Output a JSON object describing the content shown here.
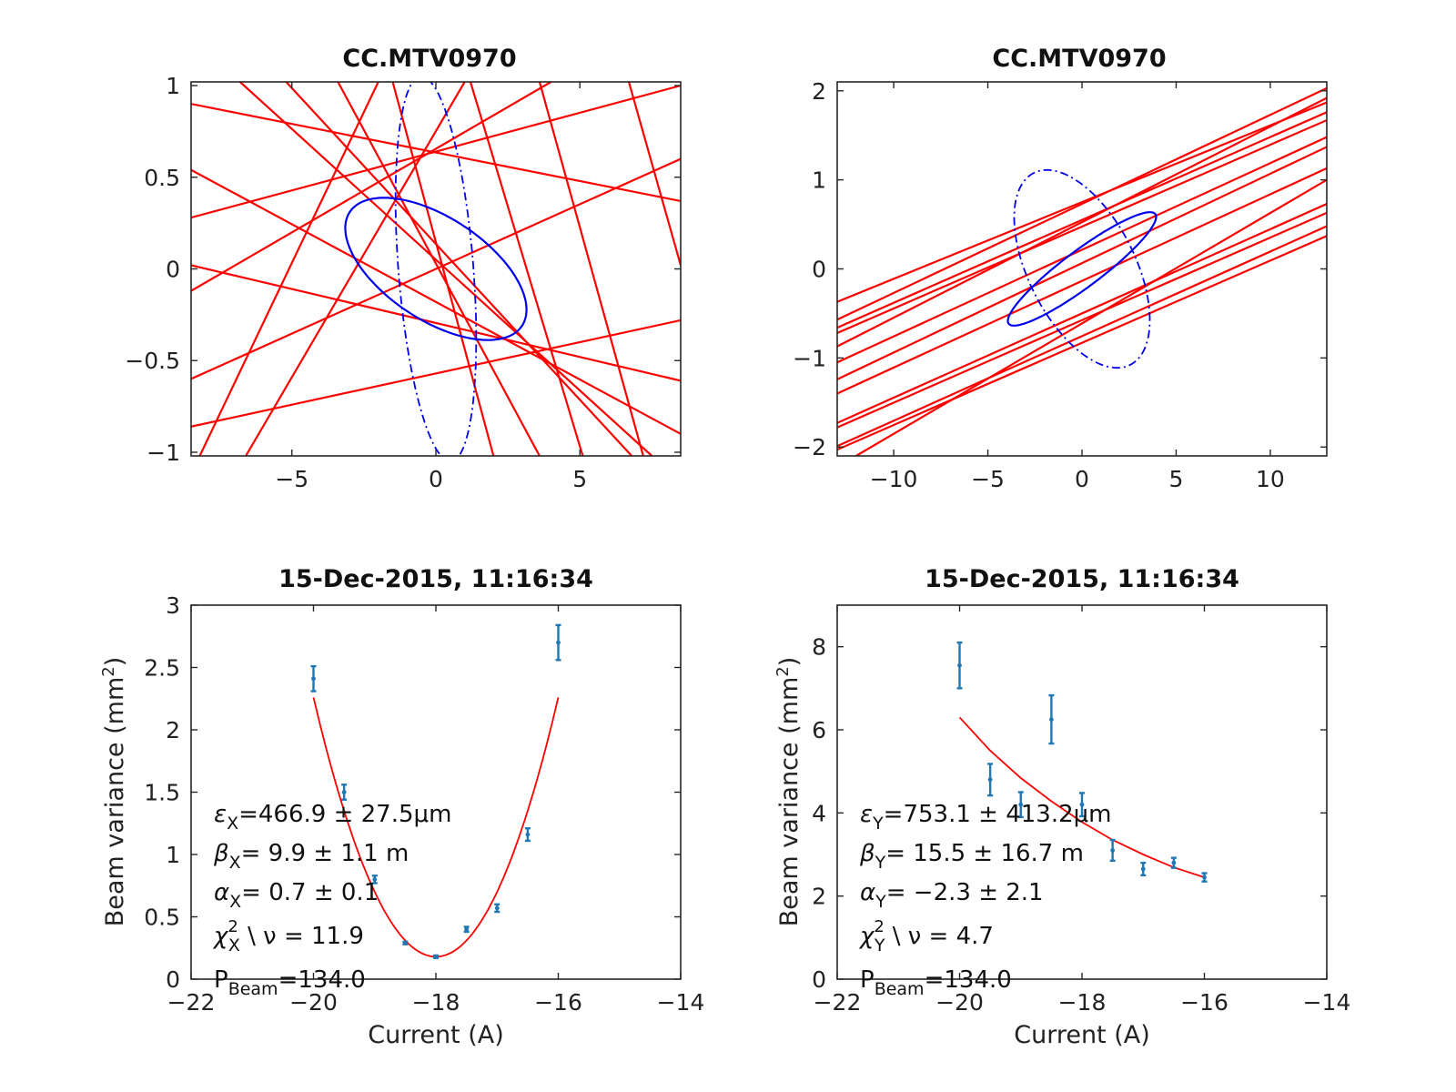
{
  "figure_colors": {
    "phase_line": "#ff0000",
    "ellipse": "#0000ee",
    "data": "#1f77b4",
    "fit": "#ff0000"
  },
  "chart_data": [
    {
      "type": "line",
      "id": "tl",
      "title": "CC.MTV0970",
      "xlabel": "",
      "ylabel": "",
      "xlim": [
        -8.5,
        8.5
      ],
      "ylim": [
        -1.02,
        1.02
      ],
      "xticks": [
        -5,
        0,
        5
      ],
      "xtick_labels": [
        "−5",
        "0",
        "5"
      ],
      "yticks": [
        -1,
        -0.5,
        0,
        0.5,
        1
      ],
      "ytick_labels": [
        "−1",
        "−0.5",
        "0",
        "0.5",
        "1"
      ],
      "ellipse_solid": {
        "emittance": 1.0,
        "beta": 9.9,
        "alpha": 0.7
      },
      "ellipse_dashed": {
        "cx": 0.0,
        "cy": 0.0,
        "rx": 1.4,
        "ry": 0.98,
        "tilt_slope": -0.27
      },
      "lines": [
        {
          "x": [
            -8.5,
            8.5
          ],
          "y": [
            0.9,
            0.37
          ]
        },
        {
          "x": [
            -8.5,
            8.5
          ],
          "y": [
            0.28,
            1.0
          ]
        },
        {
          "x": [
            -8.5,
            8.5
          ],
          "y": [
            0.02,
            -0.61
          ]
        },
        {
          "x": [
            -8.5,
            8.5
          ],
          "y": [
            -0.86,
            -0.28
          ]
        },
        {
          "x": [
            -8.5,
            8.5
          ],
          "y": [
            0.54,
            -0.9
          ]
        },
        {
          "x": [
            -8.5,
            4.0
          ],
          "y": [
            -0.12,
            1.02
          ]
        },
        {
          "x": [
            -8.5,
            8.5
          ],
          "y": [
            -0.6,
            0.6
          ]
        },
        {
          "x": [
            -6.8,
            7.5
          ],
          "y": [
            1.02,
            -1.02
          ]
        },
        {
          "x": [
            -5.2,
            6.8
          ],
          "y": [
            1.02,
            -1.02
          ]
        },
        {
          "x": [
            -3.4,
            3.6
          ],
          "y": [
            1.02,
            -1.02
          ]
        },
        {
          "x": [
            -1.5,
            2.0
          ],
          "y": [
            1.02,
            -1.02
          ]
        },
        {
          "x": [
            1.2,
            5.1
          ],
          "y": [
            1.02,
            -1.02
          ]
        },
        {
          "x": [
            3.6,
            7.2
          ],
          "y": [
            1.02,
            -1.02
          ]
        },
        {
          "x": [
            6.7,
            8.5
          ],
          "y": [
            1.02,
            0.02
          ]
        },
        {
          "x": [
            -8.2,
            -2.0
          ],
          "y": [
            -1.02,
            1.02
          ]
        },
        {
          "x": [
            -6.6,
            1.0
          ],
          "y": [
            -1.02,
            1.02
          ]
        }
      ]
    },
    {
      "type": "line",
      "id": "tr",
      "title": "CC.MTV0970",
      "xlabel": "",
      "ylabel": "",
      "xlim": [
        -13,
        13
      ],
      "ylim": [
        -2.1,
        2.1
      ],
      "xticks": [
        -10,
        -5,
        0,
        5,
        10
      ],
      "xtick_labels": [
        "−10",
        "−5",
        "0",
        "5",
        "10"
      ],
      "yticks": [
        -2,
        -1,
        0,
        1,
        2
      ],
      "ytick_labels": [
        "−2",
        "−1",
        "0",
        "1",
        "2"
      ],
      "ellipse_solid": {
        "emittance": 1.0,
        "beta": 15.5,
        "alpha": -2.3
      },
      "ellipse_dashed": {
        "cx": 0.0,
        "cy": 0.0,
        "rx": 3.6,
        "ry": 0.95,
        "tilt_slope": -0.16
      },
      "lines": [
        {
          "x": [
            -13,
            13
          ],
          "y": [
            -0.37,
            1.87
          ]
        },
        {
          "x": [
            -13,
            13
          ],
          "y": [
            -0.57,
            2.03
          ]
        },
        {
          "x": [
            -13,
            13
          ],
          "y": [
            -0.66,
            1.76
          ]
        },
        {
          "x": [
            -13,
            13
          ],
          "y": [
            -0.72,
            1.67
          ]
        },
        {
          "x": [
            -13,
            13
          ],
          "y": [
            -0.87,
            1.92
          ]
        },
        {
          "x": [
            -13,
            13
          ],
          "y": [
            -1.05,
            1.48
          ]
        },
        {
          "x": [
            -13,
            13
          ],
          "y": [
            -1.24,
            1.37
          ]
        },
        {
          "x": [
            -13,
            13
          ],
          "y": [
            -1.4,
            1.13
          ]
        },
        {
          "x": [
            -13,
            13
          ],
          "y": [
            -1.73,
            0.73
          ]
        },
        {
          "x": [
            -13,
            13
          ],
          "y": [
            -1.78,
            0.63
          ]
        },
        {
          "x": [
            -13,
            13
          ],
          "y": [
            -1.99,
            0.48
          ]
        },
        {
          "x": [
            -13,
            13
          ],
          "y": [
            -2.03,
            0.37
          ]
        },
        {
          "x": [
            -12,
            13
          ],
          "y": [
            -2.1,
            1.0
          ]
        }
      ]
    },
    {
      "type": "scatter",
      "id": "bl",
      "title": "15-Dec-2015, 11:16:34",
      "xlabel": "Current (A)",
      "ylabel": "Beam variance (mm",
      "ylabel_sup": "2",
      "ylabel_close": ")",
      "xlim": [
        -22,
        -14
      ],
      "ylim": [
        0,
        3
      ],
      "xticks": [
        -22,
        -20,
        -18,
        -16,
        -14
      ],
      "xtick_labels": [
        "−22",
        "−20",
        "−18",
        "−16",
        "−14"
      ],
      "yticks": [
        0,
        0.5,
        1,
        1.5,
        2,
        2.5,
        3
      ],
      "ytick_labels": [
        "0",
        "0.5",
        "1",
        "1.5",
        "2",
        "2.5",
        "3"
      ],
      "points": {
        "x": [
          -20,
          -19.5,
          -19,
          -18.5,
          -18,
          -17.5,
          -17,
          -16.5,
          -16
        ],
        "y": [
          2.41,
          1.5,
          0.8,
          0.29,
          0.18,
          0.4,
          0.57,
          1.16,
          2.7
        ],
        "err": [
          0.1,
          0.06,
          0.03,
          0.01,
          0.01,
          0.02,
          0.03,
          0.05,
          0.14
        ]
      },
      "fit": {
        "type": "quadratic",
        "x_range": [
          -20,
          -16
        ],
        "vertex_x": -18.0,
        "vertex_y": 0.18,
        "coeff": 0.52
      },
      "annotation": {
        "emit_sym": "ε",
        "emit_sub": "X",
        "emit_text": "=466.9 ± 27.5",
        "emit_unit": "μm",
        "beta_sym": "β",
        "beta_sub": "X",
        "beta_text": "=  9.9 ± 1.1 m",
        "alpha_sym": "α",
        "alpha_sub": "X",
        "alpha_text": "=  0.7 ± 0.1",
        "chi_sym": "χ",
        "chi_sup": "2",
        "chi_sub": "X",
        "chi_text": " \\ ν = 11.9",
        "p_sym": "P",
        "p_sub": "Beam",
        "p_text": "=134.0"
      }
    },
    {
      "type": "scatter",
      "id": "br",
      "title": "15-Dec-2015, 11:16:34",
      "xlabel": "Current (A)",
      "ylabel": "Beam variance (mm",
      "ylabel_sup": "2",
      "ylabel_close": ")",
      "xlim": [
        -22,
        -14
      ],
      "ylim": [
        0,
        9
      ],
      "xticks": [
        -22,
        -20,
        -18,
        -16,
        -14
      ],
      "xtick_labels": [
        "−22",
        "−20",
        "−18",
        "−16",
        "−14"
      ],
      "yticks": [
        0,
        2,
        4,
        6,
        8
      ],
      "ytick_labels": [
        "0",
        "2",
        "4",
        "6",
        "8"
      ],
      "points": {
        "x": [
          -20,
          -19.5,
          -19,
          -18.5,
          -18,
          -17.5,
          -17,
          -16.5,
          -16
        ],
        "y": [
          7.55,
          4.8,
          4.2,
          6.25,
          4.2,
          3.1,
          2.65,
          2.8,
          2.45
        ],
        "err": [
          0.55,
          0.38,
          0.3,
          0.58,
          0.28,
          0.25,
          0.15,
          0.12,
          0.1
        ]
      },
      "fit": {
        "type": "curve",
        "x": [
          -20,
          -19.5,
          -19,
          -18.5,
          -18,
          -17.5,
          -17,
          -16.5,
          -16
        ],
        "y": [
          6.3,
          5.5,
          4.84,
          4.28,
          3.78,
          3.35,
          3.0,
          2.69,
          2.45
        ]
      },
      "annotation": {
        "emit_sym": "ε",
        "emit_sub": "Y",
        "emit_text": "=753.1 ± 413.2",
        "emit_unit": "μm",
        "beta_sym": "β",
        "beta_sub": "Y",
        "beta_text": "= 15.5 ± 16.7 m",
        "alpha_sym": "α",
        "alpha_sub": "Y",
        "alpha_text": "= −2.3 ± 2.1",
        "chi_sym": "χ",
        "chi_sup": "2",
        "chi_sub": "Y",
        "chi_text": " \\ ν =  4.7",
        "p_sym": "P",
        "p_sub": "Beam",
        "p_text": "=134.0"
      }
    }
  ]
}
